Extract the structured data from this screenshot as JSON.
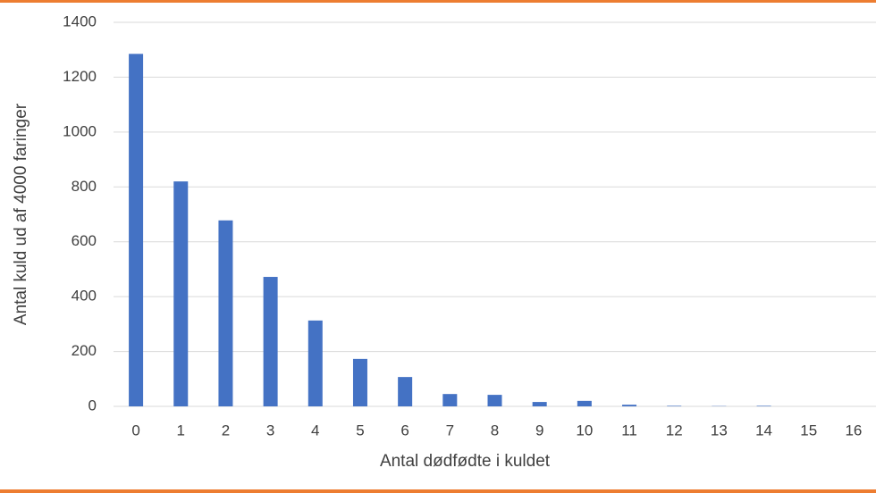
{
  "chart_data": {
    "type": "bar",
    "x_label": "Antal dødfødte i kuldet",
    "y_label": "Antal kuld ud af 4000 faringer",
    "categories": [
      "0",
      "1",
      "2",
      "3",
      "4",
      "5",
      "6",
      "7",
      "8",
      "9",
      "10",
      "11",
      "12",
      "13",
      "14",
      "15",
      "16"
    ],
    "values": [
      1285,
      820,
      678,
      472,
      313,
      173,
      107,
      45,
      42,
      16,
      20,
      6,
      2,
      1,
      2,
      0,
      0
    ],
    "color": "#4472c4",
    "ylim": [
      0,
      1400
    ],
    "yticks": [
      0,
      200,
      400,
      600,
      800,
      1000,
      1200,
      1400
    ],
    "grid": true
  }
}
